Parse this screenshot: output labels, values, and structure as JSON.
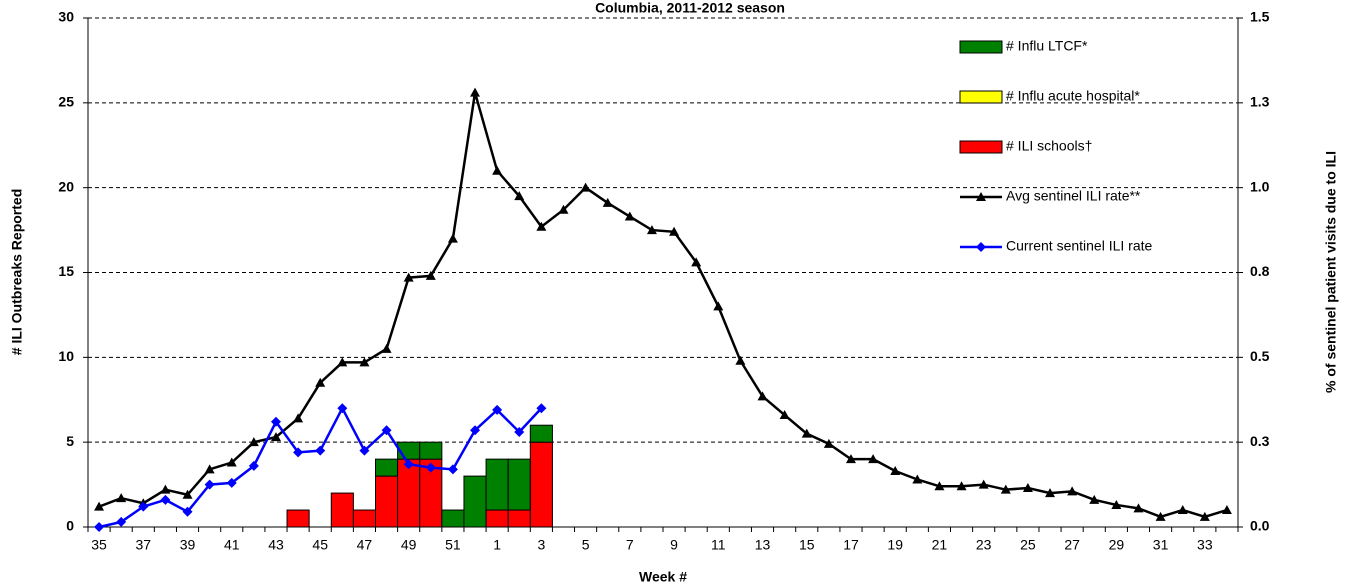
{
  "chart_data": {
    "type": "bar+line",
    "title": "Columbia, 2011-2012 season",
    "x_label": "Week #",
    "y_label": "# ILI Outbreaks Reported",
    "y2_label": "% of sentinel patient visits due to ILI",
    "categories": [
      "35",
      null,
      "37",
      null,
      "39",
      null,
      "41",
      null,
      "43",
      null,
      "45",
      null,
      "47",
      null,
      "49",
      null,
      "51",
      null,
      "1",
      null,
      "3",
      null,
      "5",
      null,
      "7",
      null,
      "9",
      null,
      "11",
      null,
      "13",
      null,
      "15",
      null,
      "17",
      null,
      "19",
      null,
      "21",
      null,
      "23",
      null,
      "25",
      null,
      "27",
      null,
      "29",
      null,
      "31",
      null,
      "33",
      null
    ],
    "ylim": [
      0,
      30
    ],
    "yticks": [
      0,
      5,
      10,
      15,
      20,
      25,
      30
    ],
    "y2lim": [
      0,
      1.5
    ],
    "y2ticks": [
      {
        "value": 0,
        "label": "0.0"
      },
      {
        "value": 0.25,
        "label": "0.3"
      },
      {
        "value": 0.5,
        "label": "0.5"
      },
      {
        "value": 0.75,
        "label": "0.8"
      },
      {
        "value": 1,
        "label": "1.0"
      },
      {
        "value": 1.25,
        "label": "1.3"
      },
      {
        "value": 1.5,
        "label": "1.5"
      }
    ],
    "grid": true,
    "legend": "upper right",
    "series": [
      {
        "name": "# Influ LTCF*",
        "type": "bar",
        "color": "#008000",
        "values": [
          0,
          0,
          0,
          0,
          0,
          0,
          0,
          0,
          0,
          0,
          0,
          0,
          0,
          1,
          1,
          1,
          1,
          3,
          3,
          3,
          1,
          0,
          0,
          0,
          0,
          0,
          0,
          0,
          0,
          0,
          0,
          0,
          0,
          0,
          0,
          0,
          0,
          0,
          0,
          0,
          0,
          0,
          0,
          0,
          0,
          0,
          0,
          0,
          0,
          0,
          0,
          0
        ]
      },
      {
        "name": "# Influ acute hospital*",
        "type": "bar",
        "color": "#ffff00",
        "values": [
          0,
          0,
          0,
          0,
          0,
          0,
          0,
          0,
          0,
          0,
          0,
          0,
          0,
          0,
          0,
          0,
          0,
          0,
          0,
          0,
          0,
          0,
          0,
          0,
          0,
          0,
          0,
          0,
          0,
          0,
          0,
          0,
          0,
          0,
          0,
          0,
          0,
          0,
          0,
          0,
          0,
          0,
          0,
          0,
          0,
          0,
          0,
          0,
          0,
          0,
          0,
          0
        ]
      },
      {
        "name": "# ILI schools†",
        "type": "bar",
        "color": "#ff0000",
        "values": [
          0,
          0,
          0,
          0,
          0,
          0,
          0,
          0,
          0,
          1,
          0,
          2,
          1,
          3,
          4,
          4,
          0,
          0,
          1,
          1,
          5,
          0,
          0,
          0,
          0,
          0,
          0,
          0,
          0,
          0,
          0,
          0,
          0,
          0,
          0,
          0,
          0,
          0,
          0,
          0,
          0,
          0,
          0,
          0,
          0,
          0,
          0,
          0,
          0,
          0,
          0,
          0
        ]
      },
      {
        "name": "Avg sentinel ILI rate**",
        "type": "line",
        "axis": "y2",
        "color": "#000000",
        "marker": "triangle",
        "values": [
          0.06,
          0.085,
          0.07,
          0.11,
          0.095,
          0.17,
          0.19,
          0.25,
          0.265,
          0.32,
          0.425,
          0.485,
          0.485,
          0.525,
          0.735,
          0.74,
          0.85,
          1.28,
          1.05,
          0.975,
          0.885,
          0.935,
          1.0,
          0.955,
          0.915,
          0.875,
          0.87,
          0.78,
          0.65,
          0.49,
          0.385,
          0.33,
          0.275,
          0.245,
          0.2,
          0.2,
          0.165,
          0.14,
          0.12,
          0.12,
          0.125,
          0.11,
          0.115,
          0.1,
          0.105,
          0.08,
          0.065,
          0.055,
          0.03,
          0.05,
          0.03,
          0.05
        ]
      },
      {
        "name": "Current sentinel ILI rate",
        "type": "line",
        "axis": "y2",
        "color": "#0000ff",
        "marker": "diamond",
        "values": [
          0,
          0.015,
          0.06,
          0.08,
          0.045,
          0.125,
          0.13,
          0.18,
          0.31,
          0.22,
          0.225,
          0.35,
          0.225,
          0.285,
          0.185,
          0.175,
          0.17,
          0.285,
          0.345,
          0.28,
          0.35,
          null,
          null,
          null,
          null,
          null,
          null,
          null,
          null,
          null,
          null,
          null,
          null,
          null,
          null,
          null,
          null,
          null,
          null,
          null,
          null,
          null,
          null,
          null,
          null,
          null,
          null,
          null,
          null,
          null,
          null,
          null
        ]
      }
    ]
  }
}
